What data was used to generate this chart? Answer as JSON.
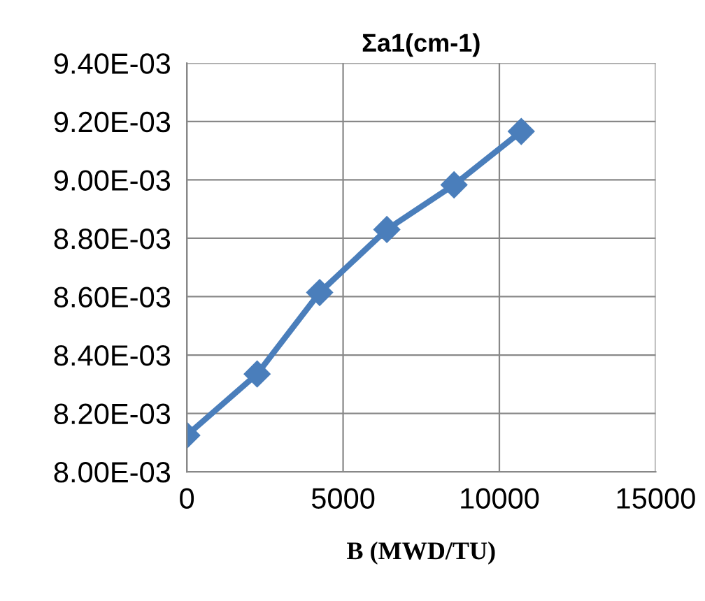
{
  "chart_data": {
    "type": "line",
    "title": "Σa1(cm-1)",
    "xlabel": "B (MWD/TU)",
    "x": [
      0,
      2250,
      4250,
      6400,
      8550,
      10700
    ],
    "series": [
      {
        "color": "#4a7ebb",
        "values": [
          0.008125,
          0.008335,
          0.008614,
          0.00883,
          0.008983,
          0.009166
        ]
      }
    ],
    "xlim": [
      0,
      15000
    ],
    "xticks": [
      0,
      5000,
      10000,
      15000
    ],
    "ylim": [
      0.008,
      0.0094
    ],
    "yticks": [
      {
        "value": 0.008,
        "label": "8.00E-03"
      },
      {
        "value": 0.0082,
        "label": "8.20E-03"
      },
      {
        "value": 0.0084,
        "label": "8.40E-03"
      },
      {
        "value": 0.0086,
        "label": "8.60E-03"
      },
      {
        "value": 0.0088,
        "label": "8.80E-03"
      },
      {
        "value": 0.009,
        "label": "9.00E-03"
      },
      {
        "value": 0.0092,
        "label": "9.20E-03"
      },
      {
        "value": 0.0094,
        "label": "9.40E-03"
      }
    ],
    "grid": true,
    "marker": "diamond",
    "line_style": "solid"
  }
}
